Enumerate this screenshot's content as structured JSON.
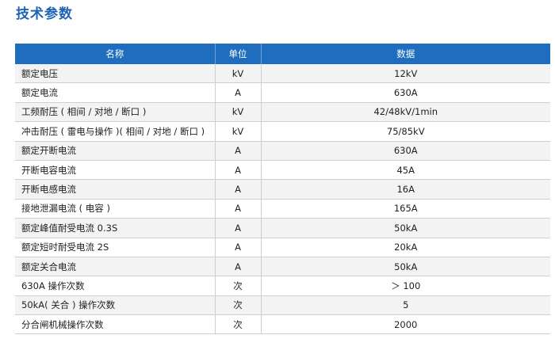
{
  "title": "技术参数",
  "table": {
    "headers": {
      "name": "名称",
      "unit": "单位",
      "value": "数据"
    },
    "rows": [
      {
        "name": "额定电压",
        "unit": "kV",
        "value": "12kV"
      },
      {
        "name": "额定电流",
        "unit": "A",
        "value": "630A"
      },
      {
        "name": "工频耐压 ( 相间 / 对地 / 断口 )",
        "unit": "kV",
        "value": "42/48kV/1min"
      },
      {
        "name": "冲击耐压 ( 雷电与操作 )( 相间 / 对地 / 断口 )",
        "unit": "kV",
        "value": "75/85kV"
      },
      {
        "name": "额定开断电流",
        "unit": "A",
        "value": "630A"
      },
      {
        "name": "开断电容电流",
        "unit": "A",
        "value": "45A"
      },
      {
        "name": "开断电感电流",
        "unit": "A",
        "value": "16A"
      },
      {
        "name": "接地泄漏电流 ( 电容 )",
        "unit": "A",
        "value": "165A"
      },
      {
        "name": "额定峰值耐受电流 0.3S",
        "unit": "A",
        "value": "50kA"
      },
      {
        "name": "额定短时耐受电流 2S",
        "unit": "A",
        "value": "20kA"
      },
      {
        "name": "额定关合电流",
        "unit": "A",
        "value": "50kA"
      },
      {
        "name": "630A 操作次数",
        "unit": "次",
        "value": "＞ 100"
      },
      {
        "name": "50kA( 关合 ) 操作次数",
        "unit": "次",
        "value": "5"
      },
      {
        "name": "分合闸机械操作次数",
        "unit": "次",
        "value": "2000"
      }
    ]
  }
}
